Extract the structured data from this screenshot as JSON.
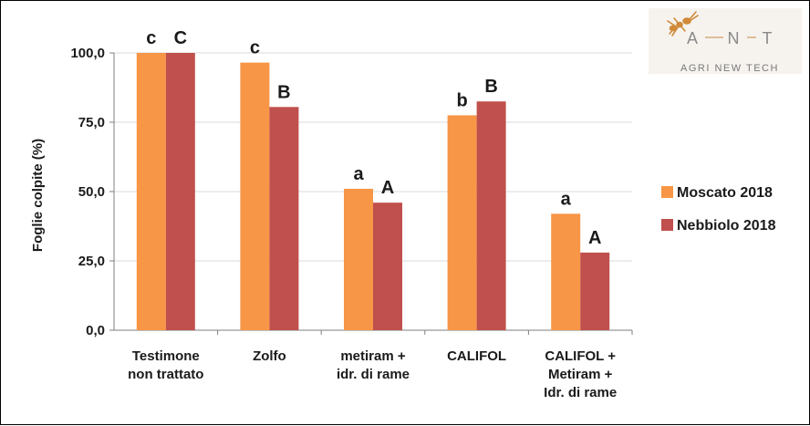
{
  "chart_data": {
    "type": "bar",
    "ylabel": "Foglie colpite (%)",
    "ylim": [
      0,
      100
    ],
    "yticks": [
      "0,0",
      "25,0",
      "50,0",
      "75,0",
      "100,0"
    ],
    "ytick_values": [
      0,
      25,
      50,
      75,
      100
    ],
    "grid": "horizontal",
    "legend_position": "right",
    "categories": [
      [
        "Testimone",
        "non trattato"
      ],
      [
        "Zolfo"
      ],
      [
        "metiram +",
        "idr. di rame"
      ],
      [
        "CALIFOL"
      ],
      [
        "CALIFOL +",
        "Metiram +",
        "Idr. di rame"
      ]
    ],
    "series": [
      {
        "name": "Moscato 2018",
        "color": "#f79646",
        "values": [
          100,
          96.5,
          51,
          77.5,
          42
        ],
        "letters": [
          "c",
          "c",
          "a",
          "b",
          "a"
        ]
      },
      {
        "name": "Nebbiolo 2018",
        "color": "#c0504d",
        "values": [
          100,
          80.5,
          46,
          82.5,
          28
        ],
        "letters": [
          "C",
          "B",
          "A",
          "B",
          "A"
        ]
      }
    ]
  },
  "logo": {
    "letters": [
      "A",
      "N",
      "T"
    ],
    "subtitle": "AGRI NEW TECH"
  }
}
